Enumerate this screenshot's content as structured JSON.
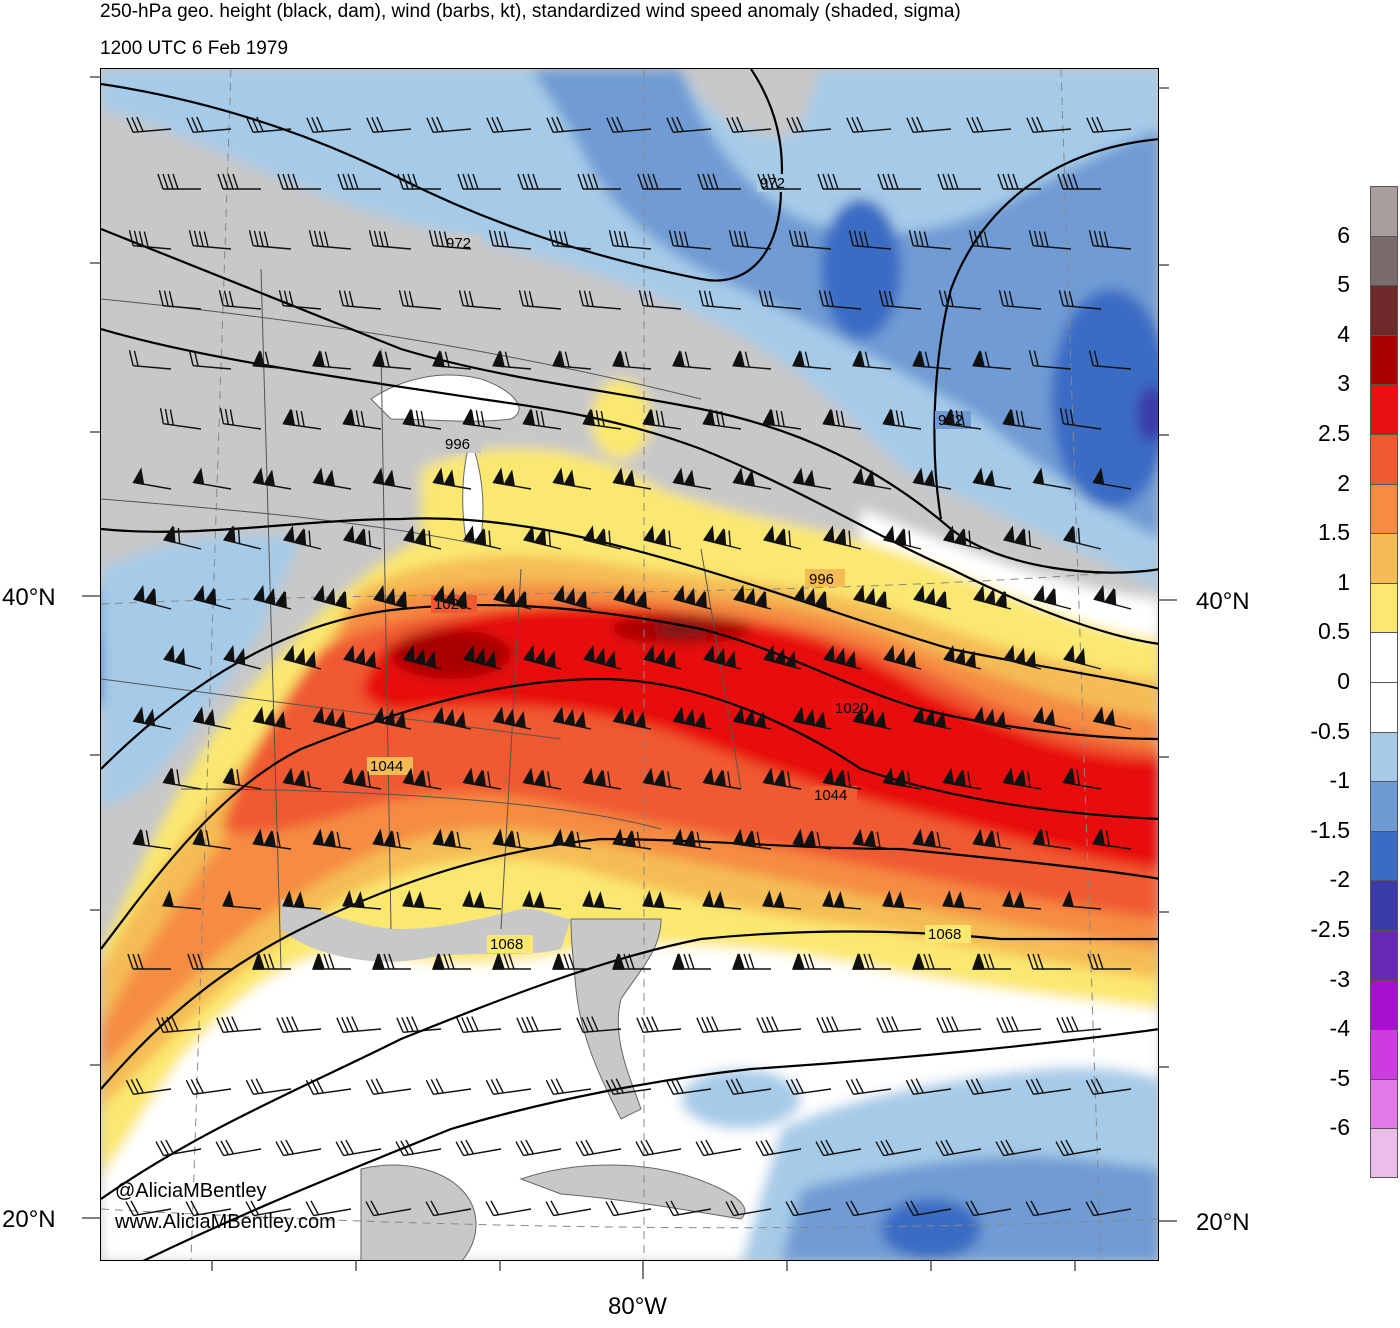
{
  "titles": {
    "line1": "250-hPa geo. height (black, dam), wind (barbs, kt), standardized wind speed anomaly (shaded, sigma)",
    "line2": "1200 UTC 6 Feb 1979"
  },
  "lat_labels": {
    "lat40_left": "40°N",
    "lat40_right": "40°N",
    "lat20_left": "20°N",
    "lat20_right": "20°N"
  },
  "lon_labels": {
    "lon80": "80°W"
  },
  "credits": {
    "handle": "@AliciaMBentley",
    "website": "www.AliciaMBentley.com"
  },
  "contour_labels": [
    "972",
    "972",
    "972",
    "996",
    "996",
    "1020",
    "1020",
    "1044",
    "1044",
    "1068",
    "1068"
  ],
  "colorbar": {
    "colors": [
      "#a89e9e",
      "#7a6c6c",
      "#6e2a2a",
      "#a80000",
      "#e81010",
      "#f05a30",
      "#f58c42",
      "#f5bc55",
      "#fbe870",
      "#ffffff",
      "#ffffff",
      "#a6cbe8",
      "#6f9bd4",
      "#3a6cc4",
      "#3a3aa8",
      "#6a28b8",
      "#a810d0",
      "#cc3ce0",
      "#e07ae6",
      "#ebbde9"
    ],
    "labels": [
      "6",
      "5",
      "4",
      "3",
      "2.5",
      "2",
      "1.5",
      "1",
      "0.5",
      "0",
      "-0.5",
      "-1",
      "-1.5",
      "-2",
      "-2.5",
      "-3",
      "-4",
      "-5",
      "-6"
    ]
  },
  "palette": {
    "land_gray": "#c8c8c8",
    "anom_neg05": "#a6cbe8",
    "anom_neg1": "#6f9bd4",
    "anom_neg15": "#3a6cc4",
    "anom_neg2": "#3a3aa8",
    "anom_05": "#fbe870",
    "anom_1": "#f5bc55",
    "anom_15": "#f58c42",
    "anom_2": "#f05a30",
    "anom_25": "#e81010",
    "anom_3": "#a80000",
    "anom_4": "#7a1a1a"
  }
}
